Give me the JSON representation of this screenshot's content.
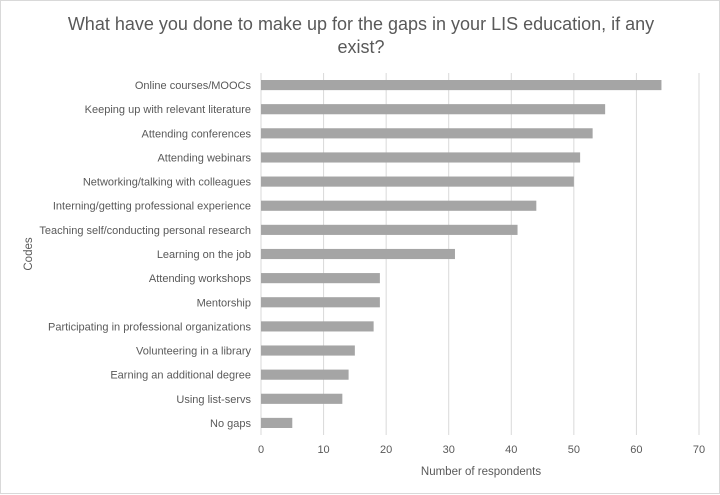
{
  "chart_data": {
    "type": "bar",
    "orientation": "horizontal",
    "title_lines": [
      "What have you done to make up for the gaps in your LIS education, if any",
      "exist?"
    ],
    "xlabel": "Number  of respondents",
    "ylabel": "Codes",
    "xlim": [
      0,
      70
    ],
    "xticks": [
      0,
      10,
      20,
      30,
      40,
      50,
      60,
      70
    ],
    "grid": true,
    "legend": "none",
    "bar_color": "#a5a5a5",
    "grid_color": "#d9d9d9",
    "categories": [
      "Online courses/MOOCs",
      "Keeping up with relevant literature",
      "Attending conferences",
      "Attending webinars",
      "Networking/talking with colleagues",
      "Interning/getting professional experience",
      "Teaching self/conducting personal research",
      "Learning on the job",
      "Attending workshops",
      "Mentorship",
      "Participating in professional organizations",
      "Volunteering in a library",
      "Earning an additional degree",
      "Using list-servs",
      "No gaps"
    ],
    "values": [
      64,
      55,
      53,
      51,
      50,
      44,
      41,
      31,
      19,
      19,
      18,
      15,
      14,
      13,
      5
    ]
  }
}
